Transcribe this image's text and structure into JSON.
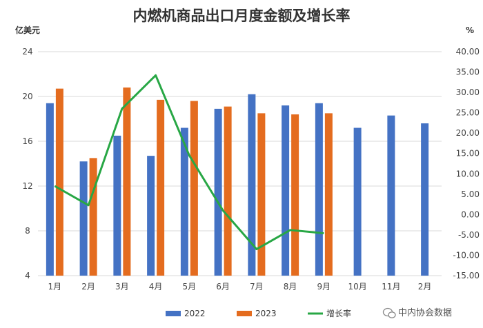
{
  "chart_data": {
    "type": "bar",
    "title": "内燃机商品出口月度金额及增长率",
    "left_unit": "亿美元",
    "right_unit": "%",
    "categories": [
      "1月",
      "2月",
      "3月",
      "4月",
      "5月",
      "6月",
      "7月",
      "8月",
      "9月",
      "10月",
      "11月",
      "2月"
    ],
    "series": [
      {
        "name": "2022",
        "type": "bar",
        "axis": "left",
        "color": "#4472C4",
        "values": [
          19.4,
          14.2,
          16.5,
          14.7,
          17.2,
          18.9,
          20.2,
          19.2,
          19.4,
          17.2,
          18.3,
          17.6
        ]
      },
      {
        "name": "2023",
        "type": "bar",
        "axis": "left",
        "color": "#E46C1F",
        "values": [
          20.7,
          14.5,
          20.8,
          19.7,
          19.6,
          19.1,
          18.5,
          18.4,
          18.5,
          null,
          null,
          null
        ]
      },
      {
        "name": "增长率",
        "type": "line",
        "axis": "right",
        "color": "#28A745",
        "values": [
          7.0,
          2.3,
          26.0,
          34.2,
          14.5,
          1.0,
          -8.5,
          -3.8,
          -4.6,
          null,
          null,
          null
        ]
      }
    ],
    "ylim_left": [
      4,
      24
    ],
    "left_ticks": [
      "4",
      "8",
      "12",
      "16",
      "20",
      "24"
    ],
    "ylim_right": [
      -15,
      40
    ],
    "right_ticks": [
      "-15.00",
      "-10.00",
      "-5.00",
      "0.00",
      "5.00",
      "10.00",
      "15.00",
      "20.00",
      "25.00",
      "30.00",
      "35.00",
      "40.00"
    ],
    "grid": true,
    "legend_position": "bottom"
  },
  "watermark": "中内协会数据"
}
